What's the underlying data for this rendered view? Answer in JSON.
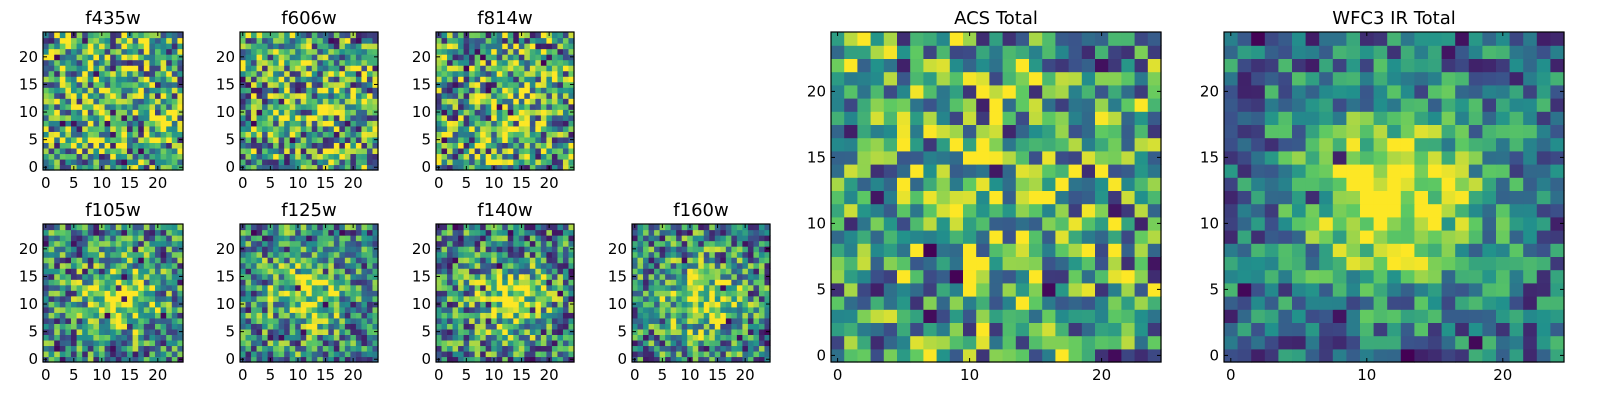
{
  "colormap": [
    "#440154",
    "#3b528b",
    "#21918c",
    "#5ec962",
    "#fde725"
  ],
  "chart_data": [
    {
      "type": "heatmap",
      "title": "f435w",
      "grid_size": 25,
      "xlim": [
        0,
        24
      ],
      "ylim": [
        0,
        24
      ],
      "xticks": [
        "0",
        "5",
        "10",
        "15",
        "20"
      ],
      "yticks": [
        "0",
        "5",
        "10",
        "15",
        "20"
      ],
      "center": [
        12,
        12
      ],
      "blob_amplitude": 0.05,
      "noise_amplitude": 0.5,
      "seed": 11
    },
    {
      "type": "heatmap",
      "title": "f606w",
      "grid_size": 25,
      "xlim": [
        0,
        24
      ],
      "ylim": [
        0,
        24
      ],
      "xticks": [
        "0",
        "5",
        "10",
        "15",
        "20"
      ],
      "yticks": [
        "0",
        "5",
        "10",
        "15",
        "20"
      ],
      "center": [
        12,
        12
      ],
      "blob_amplitude": 0.05,
      "noise_amplitude": 0.5,
      "seed": 23
    },
    {
      "type": "heatmap",
      "title": "f814w",
      "grid_size": 25,
      "xlim": [
        0,
        24
      ],
      "ylim": [
        0,
        24
      ],
      "xticks": [
        "0",
        "5",
        "10",
        "15",
        "20"
      ],
      "yticks": [
        "0",
        "5",
        "10",
        "15",
        "20"
      ],
      "center": [
        11,
        11
      ],
      "blob_amplitude": 0.15,
      "noise_amplitude": 0.5,
      "seed": 37
    },
    {
      "type": "heatmap",
      "title": "f105w",
      "grid_size": 25,
      "xlim": [
        0,
        24
      ],
      "ylim": [
        0,
        24
      ],
      "xticks": [
        "0",
        "5",
        "10",
        "15",
        "20"
      ],
      "yticks": [
        "0",
        "5",
        "10",
        "15",
        "20"
      ],
      "center": [
        13,
        11
      ],
      "blob_amplitude": 0.45,
      "noise_amplitude": 0.42,
      "seed": 41
    },
    {
      "type": "heatmap",
      "title": "f125w",
      "grid_size": 25,
      "xlim": [
        0,
        24
      ],
      "ylim": [
        0,
        24
      ],
      "xticks": [
        "0",
        "5",
        "10",
        "15",
        "20"
      ],
      "yticks": [
        "0",
        "5",
        "10",
        "15",
        "20"
      ],
      "center": [
        12,
        12
      ],
      "blob_amplitude": 0.4,
      "noise_amplitude": 0.42,
      "seed": 53
    },
    {
      "type": "heatmap",
      "title": "f140w",
      "grid_size": 25,
      "xlim": [
        0,
        24
      ],
      "ylim": [
        0,
        24
      ],
      "xticks": [
        "0",
        "5",
        "10",
        "15",
        "20"
      ],
      "yticks": [
        "0",
        "5",
        "10",
        "15",
        "20"
      ],
      "center": [
        13,
        11
      ],
      "blob_amplitude": 0.45,
      "noise_amplitude": 0.42,
      "seed": 67
    },
    {
      "type": "heatmap",
      "title": "f160w",
      "grid_size": 25,
      "xlim": [
        0,
        24
      ],
      "ylim": [
        0,
        24
      ],
      "xticks": [
        "0",
        "5",
        "10",
        "15",
        "20"
      ],
      "yticks": [
        "0",
        "5",
        "10",
        "15",
        "20"
      ],
      "center": [
        12,
        11
      ],
      "blob_amplitude": 0.45,
      "noise_amplitude": 0.42,
      "seed": 79
    },
    {
      "type": "heatmap",
      "title": "ACS Total",
      "grid_size": 25,
      "xlim": [
        0,
        24
      ],
      "ylim": [
        0,
        24
      ],
      "xticks": [
        "0",
        "10",
        "20"
      ],
      "yticks": [
        "0",
        "5",
        "10",
        "15",
        "20"
      ],
      "center": [
        12,
        11
      ],
      "blob_amplitude": 0.12,
      "noise_amplitude": 0.45,
      "seed": 83
    },
    {
      "type": "heatmap",
      "title": "WFC3 IR Total",
      "grid_size": 25,
      "xlim": [
        0,
        24
      ],
      "ylim": [
        0,
        24
      ],
      "xticks": [
        "0",
        "10",
        "20"
      ],
      "yticks": [
        "0",
        "5",
        "10",
        "15",
        "20"
      ],
      "center": [
        12,
        12
      ],
      "blob_amplitude": 0.7,
      "noise_amplitude": 0.3,
      "seed": 97
    }
  ]
}
